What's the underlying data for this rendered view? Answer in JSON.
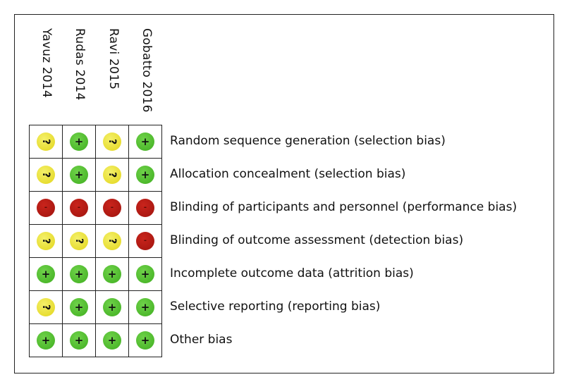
{
  "studies": [
    "Yavuz 2014",
    "Rudas 2014",
    "Ravi 2015",
    "Gobatto 2016"
  ],
  "domains": [
    "Random sequence generation (selection bias)",
    "Allocation concealment (selection bias)",
    "Blinding of participants and personnel (performance bias)",
    "Blinding of outcome assessment (detection bias)",
    "Incomplete outcome data (attrition bias)",
    "Selective reporting (reporting bias)",
    "Other bias"
  ],
  "judgement_symbols": {
    "low": "+",
    "unclear": "?",
    "high": "-"
  },
  "judgement_colors": {
    "low": "#4cbc2a",
    "unclear": "#e8e02a",
    "high": "#b51a12"
  },
  "ratings": [
    [
      "unclear",
      "low",
      "unclear",
      "low"
    ],
    [
      "unclear",
      "low",
      "unclear",
      "low"
    ],
    [
      "high",
      "high",
      "high",
      "high"
    ],
    [
      "unclear",
      "unclear",
      "unclear",
      "high"
    ],
    [
      "low",
      "low",
      "low",
      "low"
    ],
    [
      "unclear",
      "low",
      "low",
      "low"
    ],
    [
      "low",
      "low",
      "low",
      "low"
    ]
  ]
}
